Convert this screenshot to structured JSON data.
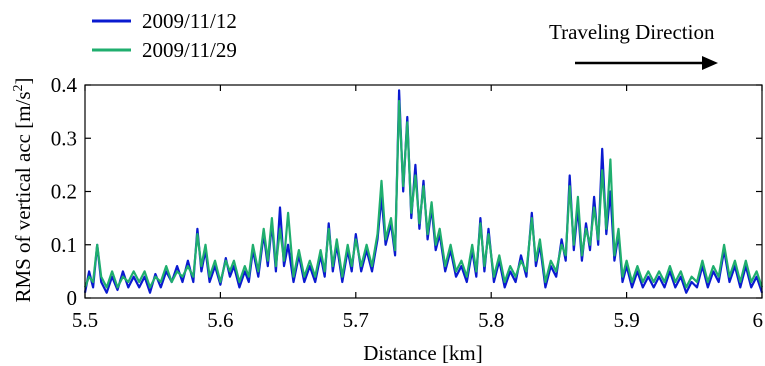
{
  "chart_data": {
    "type": "line",
    "xlabel": "Distance [km]",
    "ylabel_main": "RMS of vertical acc [m/s",
    "ylabel_sup": "2",
    "ylabel_close": "]",
    "xlim": [
      5.5,
      6.0
    ],
    "ylim": [
      0,
      0.4
    ],
    "x_ticks": [
      5.5,
      5.6,
      5.7,
      5.8,
      5.9,
      6.0
    ],
    "x_tick_labels": [
      "5.5",
      "5.6",
      "5.7",
      "5.8",
      "5.9",
      "6"
    ],
    "y_ticks": [
      0,
      0.1,
      0.2,
      0.3,
      0.4
    ],
    "y_tick_labels": [
      "0",
      "0.1",
      "0.2",
      "0.3",
      "0.4"
    ],
    "grid": false,
    "legend_position": "top-left, outside plot",
    "annotation": {
      "text": "Traveling Direction",
      "arrow": "right"
    },
    "series": [
      {
        "name": "2009/11/12",
        "color": "#0a1ad0",
        "points": [
          [
            5.5,
            0.01
          ],
          [
            5.503,
            0.05
          ],
          [
            5.506,
            0.02
          ],
          [
            5.509,
            0.1
          ],
          [
            5.512,
            0.03
          ],
          [
            5.516,
            0.01
          ],
          [
            5.52,
            0.04
          ],
          [
            5.524,
            0.015
          ],
          [
            5.528,
            0.05
          ],
          [
            5.532,
            0.02
          ],
          [
            5.536,
            0.04
          ],
          [
            5.54,
            0.02
          ],
          [
            5.544,
            0.04
          ],
          [
            5.548,
            0.01
          ],
          [
            5.552,
            0.045
          ],
          [
            5.556,
            0.02
          ],
          [
            5.56,
            0.05
          ],
          [
            5.564,
            0.03
          ],
          [
            5.568,
            0.06
          ],
          [
            5.572,
            0.03
          ],
          [
            5.576,
            0.07
          ],
          [
            5.58,
            0.03
          ],
          [
            5.583,
            0.13
          ],
          [
            5.586,
            0.05
          ],
          [
            5.589,
            0.09
          ],
          [
            5.592,
            0.03
          ],
          [
            5.596,
            0.06
          ],
          [
            5.6,
            0.025
          ],
          [
            5.604,
            0.075
          ],
          [
            5.607,
            0.04
          ],
          [
            5.61,
            0.06
          ],
          [
            5.614,
            0.02
          ],
          [
            5.618,
            0.05
          ],
          [
            5.621,
            0.03
          ],
          [
            5.624,
            0.09
          ],
          [
            5.628,
            0.04
          ],
          [
            5.632,
            0.12
          ],
          [
            5.635,
            0.06
          ],
          [
            5.638,
            0.14
          ],
          [
            5.641,
            0.05
          ],
          [
            5.644,
            0.17
          ],
          [
            5.647,
            0.06
          ],
          [
            5.65,
            0.1
          ],
          [
            5.654,
            0.03
          ],
          [
            5.658,
            0.08
          ],
          [
            5.662,
            0.03
          ],
          [
            5.666,
            0.06
          ],
          [
            5.67,
            0.03
          ],
          [
            5.674,
            0.08
          ],
          [
            5.677,
            0.04
          ],
          [
            5.68,
            0.14
          ],
          [
            5.683,
            0.05
          ],
          [
            5.686,
            0.1
          ],
          [
            5.69,
            0.03
          ],
          [
            5.694,
            0.09
          ],
          [
            5.697,
            0.05
          ],
          [
            5.7,
            0.12
          ],
          [
            5.704,
            0.05
          ],
          [
            5.708,
            0.09
          ],
          [
            5.712,
            0.05
          ],
          [
            5.716,
            0.11
          ],
          [
            5.719,
            0.19
          ],
          [
            5.722,
            0.1
          ],
          [
            5.726,
            0.14
          ],
          [
            5.729,
            0.08
          ],
          [
            5.732,
            0.39
          ],
          [
            5.735,
            0.2
          ],
          [
            5.738,
            0.34
          ],
          [
            5.741,
            0.15
          ],
          [
            5.744,
            0.25
          ],
          [
            5.747,
            0.13
          ],
          [
            5.75,
            0.22
          ],
          [
            5.753,
            0.11
          ],
          [
            5.756,
            0.17
          ],
          [
            5.759,
            0.09
          ],
          [
            5.762,
            0.12
          ],
          [
            5.766,
            0.05
          ],
          [
            5.77,
            0.09
          ],
          [
            5.774,
            0.04
          ],
          [
            5.778,
            0.06
          ],
          [
            5.782,
            0.03
          ],
          [
            5.786,
            0.09
          ],
          [
            5.789,
            0.04
          ],
          [
            5.792,
            0.15
          ],
          [
            5.795,
            0.05
          ],
          [
            5.798,
            0.13
          ],
          [
            5.802,
            0.03
          ],
          [
            5.806,
            0.07
          ],
          [
            5.81,
            0.02
          ],
          [
            5.814,
            0.05
          ],
          [
            5.818,
            0.03
          ],
          [
            5.822,
            0.08
          ],
          [
            5.826,
            0.04
          ],
          [
            5.83,
            0.16
          ],
          [
            5.833,
            0.06
          ],
          [
            5.836,
            0.1
          ],
          [
            5.84,
            0.02
          ],
          [
            5.844,
            0.06
          ],
          [
            5.848,
            0.04
          ],
          [
            5.852,
            0.11
          ],
          [
            5.855,
            0.07
          ],
          [
            5.858,
            0.23
          ],
          [
            5.861,
            0.09
          ],
          [
            5.864,
            0.17
          ],
          [
            5.867,
            0.07
          ],
          [
            5.87,
            0.14
          ],
          [
            5.873,
            0.09
          ],
          [
            5.876,
            0.19
          ],
          [
            5.879,
            0.1
          ],
          [
            5.882,
            0.28
          ],
          [
            5.885,
            0.12
          ],
          [
            5.888,
            0.2
          ],
          [
            5.891,
            0.07
          ],
          [
            5.894,
            0.12
          ],
          [
            5.897,
            0.03
          ],
          [
            5.9,
            0.06
          ],
          [
            5.904,
            0.02
          ],
          [
            5.908,
            0.05
          ],
          [
            5.912,
            0.02
          ],
          [
            5.916,
            0.04
          ],
          [
            5.92,
            0.02
          ],
          [
            5.924,
            0.04
          ],
          [
            5.928,
            0.02
          ],
          [
            5.932,
            0.05
          ],
          [
            5.936,
            0.02
          ],
          [
            5.94,
            0.04
          ],
          [
            5.944,
            0.01
          ],
          [
            5.948,
            0.03
          ],
          [
            5.952,
            0.02
          ],
          [
            5.956,
            0.06
          ],
          [
            5.96,
            0.02
          ],
          [
            5.964,
            0.05
          ],
          [
            5.968,
            0.03
          ],
          [
            5.972,
            0.09
          ],
          [
            5.976,
            0.03
          ],
          [
            5.98,
            0.06
          ],
          [
            5.984,
            0.02
          ],
          [
            5.988,
            0.06
          ],
          [
            5.992,
            0.02
          ],
          [
            5.996,
            0.04
          ],
          [
            6.0,
            0.01
          ]
        ]
      },
      {
        "name": "2009/11/29",
        "color": "#1fae6e",
        "points": [
          [
            5.5,
            0.02
          ],
          [
            5.503,
            0.04
          ],
          [
            5.506,
            0.03
          ],
          [
            5.509,
            0.1
          ],
          [
            5.512,
            0.04
          ],
          [
            5.516,
            0.02
          ],
          [
            5.52,
            0.05
          ],
          [
            5.524,
            0.02
          ],
          [
            5.528,
            0.04
          ],
          [
            5.532,
            0.03
          ],
          [
            5.536,
            0.05
          ],
          [
            5.54,
            0.03
          ],
          [
            5.544,
            0.05
          ],
          [
            5.548,
            0.02
          ],
          [
            5.552,
            0.04
          ],
          [
            5.556,
            0.03
          ],
          [
            5.56,
            0.06
          ],
          [
            5.564,
            0.03
          ],
          [
            5.568,
            0.05
          ],
          [
            5.572,
            0.04
          ],
          [
            5.576,
            0.06
          ],
          [
            5.58,
            0.04
          ],
          [
            5.583,
            0.12
          ],
          [
            5.586,
            0.06
          ],
          [
            5.589,
            0.1
          ],
          [
            5.592,
            0.04
          ],
          [
            5.596,
            0.07
          ],
          [
            5.6,
            0.03
          ],
          [
            5.604,
            0.07
          ],
          [
            5.607,
            0.05
          ],
          [
            5.61,
            0.07
          ],
          [
            5.614,
            0.03
          ],
          [
            5.618,
            0.06
          ],
          [
            5.621,
            0.04
          ],
          [
            5.624,
            0.1
          ],
          [
            5.628,
            0.05
          ],
          [
            5.632,
            0.13
          ],
          [
            5.635,
            0.07
          ],
          [
            5.638,
            0.15
          ],
          [
            5.641,
            0.06
          ],
          [
            5.644,
            0.13
          ],
          [
            5.647,
            0.07
          ],
          [
            5.65,
            0.16
          ],
          [
            5.654,
            0.04
          ],
          [
            5.658,
            0.09
          ],
          [
            5.662,
            0.04
          ],
          [
            5.666,
            0.07
          ],
          [
            5.67,
            0.04
          ],
          [
            5.674,
            0.09
          ],
          [
            5.677,
            0.05
          ],
          [
            5.68,
            0.13
          ],
          [
            5.683,
            0.06
          ],
          [
            5.686,
            0.11
          ],
          [
            5.69,
            0.04
          ],
          [
            5.694,
            0.1
          ],
          [
            5.697,
            0.06
          ],
          [
            5.7,
            0.11
          ],
          [
            5.704,
            0.06
          ],
          [
            5.708,
            0.1
          ],
          [
            5.712,
            0.06
          ],
          [
            5.716,
            0.12
          ],
          [
            5.719,
            0.22
          ],
          [
            5.722,
            0.11
          ],
          [
            5.726,
            0.15
          ],
          [
            5.729,
            0.09
          ],
          [
            5.732,
            0.37
          ],
          [
            5.735,
            0.21
          ],
          [
            5.738,
            0.33
          ],
          [
            5.741,
            0.16
          ],
          [
            5.744,
            0.23
          ],
          [
            5.747,
            0.14
          ],
          [
            5.75,
            0.21
          ],
          [
            5.753,
            0.12
          ],
          [
            5.756,
            0.18
          ],
          [
            5.759,
            0.1
          ],
          [
            5.762,
            0.13
          ],
          [
            5.766,
            0.06
          ],
          [
            5.77,
            0.1
          ],
          [
            5.774,
            0.05
          ],
          [
            5.778,
            0.07
          ],
          [
            5.782,
            0.04
          ],
          [
            5.786,
            0.1
          ],
          [
            5.789,
            0.05
          ],
          [
            5.792,
            0.14
          ],
          [
            5.795,
            0.06
          ],
          [
            5.798,
            0.12
          ],
          [
            5.802,
            0.04
          ],
          [
            5.806,
            0.08
          ],
          [
            5.81,
            0.03
          ],
          [
            5.814,
            0.06
          ],
          [
            5.818,
            0.04
          ],
          [
            5.822,
            0.07
          ],
          [
            5.826,
            0.05
          ],
          [
            5.83,
            0.15
          ],
          [
            5.833,
            0.07
          ],
          [
            5.836,
            0.11
          ],
          [
            5.84,
            0.03
          ],
          [
            5.844,
            0.07
          ],
          [
            5.848,
            0.05
          ],
          [
            5.852,
            0.1
          ],
          [
            5.855,
            0.08
          ],
          [
            5.858,
            0.21
          ],
          [
            5.861,
            0.1
          ],
          [
            5.864,
            0.19
          ],
          [
            5.867,
            0.08
          ],
          [
            5.87,
            0.13
          ],
          [
            5.873,
            0.1
          ],
          [
            5.876,
            0.17
          ],
          [
            5.879,
            0.11
          ],
          [
            5.882,
            0.24
          ],
          [
            5.885,
            0.13
          ],
          [
            5.888,
            0.26
          ],
          [
            5.891,
            0.08
          ],
          [
            5.894,
            0.13
          ],
          [
            5.897,
            0.04
          ],
          [
            5.9,
            0.07
          ],
          [
            5.904,
            0.03
          ],
          [
            5.908,
            0.06
          ],
          [
            5.912,
            0.03
          ],
          [
            5.916,
            0.05
          ],
          [
            5.92,
            0.03
          ],
          [
            5.924,
            0.05
          ],
          [
            5.928,
            0.03
          ],
          [
            5.932,
            0.06
          ],
          [
            5.936,
            0.03
          ],
          [
            5.94,
            0.05
          ],
          [
            5.944,
            0.02
          ],
          [
            5.948,
            0.04
          ],
          [
            5.952,
            0.03
          ],
          [
            5.956,
            0.07
          ],
          [
            5.96,
            0.03
          ],
          [
            5.964,
            0.06
          ],
          [
            5.968,
            0.04
          ],
          [
            5.972,
            0.1
          ],
          [
            5.976,
            0.04
          ],
          [
            5.98,
            0.07
          ],
          [
            5.984,
            0.03
          ],
          [
            5.988,
            0.07
          ],
          [
            5.992,
            0.03
          ],
          [
            5.996,
            0.05
          ],
          [
            6.0,
            0.02
          ]
        ]
      }
    ]
  }
}
